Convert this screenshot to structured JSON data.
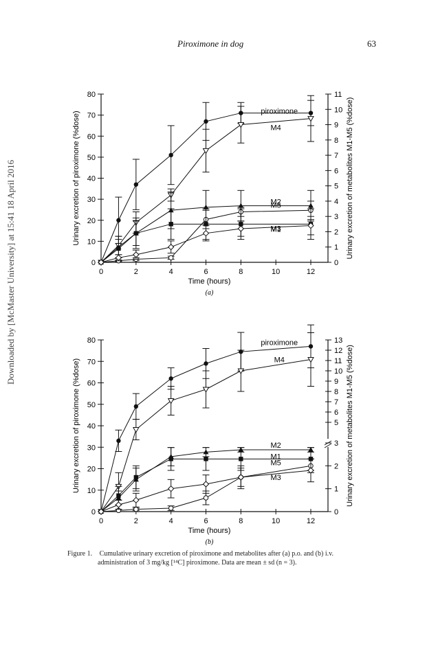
{
  "header": {
    "running_head": "Piroximone in dog",
    "page_number": "63"
  },
  "watermark": "Downloaded by [McMaster University] at 15:41 18 April 2016",
  "caption": {
    "label": "Figure 1.",
    "line1": "Cumulative urinary excretion of piroximone and metabolites after (a) p.o. and (b) i.v.",
    "line2": "administration of 3 mg/kg [¹⁴C] piroximone. Data are mean ± sd (n = 3)."
  },
  "chart_data": [
    {
      "type": "line",
      "panel_label": "(a)",
      "xlabel": "Time (hours)",
      "ylabel": "Urinary excretion of piroximone (%dose)",
      "y2label": "Urinary excretion of metabolites M1-M5 (%dose)",
      "xlim": [
        0,
        12
      ],
      "ylim": [
        0,
        80
      ],
      "y2lim": [
        0,
        11
      ],
      "xticks": [
        0,
        2,
        4,
        6,
        8,
        10,
        12
      ],
      "yticks": [
        0,
        10,
        20,
        30,
        40,
        50,
        60,
        70,
        80
      ],
      "y2ticks": [
        0,
        1,
        2,
        3,
        4,
        5,
        6,
        7,
        8,
        9,
        10,
        11
      ],
      "x": [
        0,
        1,
        2,
        4,
        6,
        8,
        12
      ],
      "series": [
        {
          "name": "piroximone",
          "axis": "left",
          "marker": "filled-circle",
          "values": [
            0,
            20,
            37,
            51,
            67,
            71,
            71
          ],
          "errors": [
            0,
            11,
            12,
            14,
            9,
            5,
            6
          ]
        },
        {
          "name": "M4",
          "axis": "right",
          "marker": "open-triangle-down",
          "values": [
            0,
            1.1,
            2.6,
            4.4,
            7.3,
            9.0,
            9.4
          ],
          "errors": [
            0,
            0.6,
            0.7,
            0.4,
            1.4,
            1.2,
            1.5
          ]
        },
        {
          "name": "M2",
          "axis": "right",
          "marker": "filled-triangle",
          "values": [
            0,
            1.0,
            1.9,
            3.4,
            3.6,
            3.7,
            3.7
          ],
          "errors": [
            0,
            0.7,
            1.0,
            1.2,
            1.1,
            1.0,
            1.0
          ]
        },
        {
          "name": "M5",
          "axis": "right",
          "marker": "open-circle",
          "values": [
            0,
            0.1,
            0.2,
            0.3,
            2.8,
            3.3,
            3.4
          ],
          "errors": [
            0,
            0.05,
            0.1,
            0.1,
            0.6,
            0.3,
            0.6
          ]
        },
        {
          "name": "M1",
          "axis": "right",
          "marker": "filled-square",
          "values": [
            0,
            0.9,
            1.9,
            2.5,
            2.5,
            2.5,
            2.5
          ],
          "errors": [
            0,
            0.6,
            0.8,
            1.0,
            1.0,
            1.0,
            1.0
          ]
        },
        {
          "name": "M3",
          "axis": "right",
          "marker": "open-diamond",
          "values": [
            0,
            0.3,
            0.5,
            1.0,
            1.9,
            2.2,
            2.4
          ],
          "errors": [
            0,
            0.2,
            0.3,
            0.4,
            0.5,
            0.5,
            0.6
          ]
        }
      ]
    },
    {
      "type": "line",
      "panel_label": "(b)",
      "xlabel": "Time (hours)",
      "ylabel": "Urinary excretion of piroximone (%dose)",
      "y2label": "Urinary excretion of metabolites M1-M5 (%dose)",
      "xlim": [
        0,
        12
      ],
      "ylim": [
        0,
        80
      ],
      "y2_scale": "broken",
      "y2_segments": [
        {
          "range": [
            0,
            3
          ],
          "axis_fraction": [
            0,
            0.4
          ]
        },
        {
          "range": [
            3,
            13
          ],
          "axis_fraction": [
            0.4,
            1.0
          ]
        }
      ],
      "xticks": [
        0,
        2,
        4,
        6,
        8,
        10,
        12
      ],
      "yticks": [
        0,
        10,
        20,
        30,
        40,
        50,
        60,
        70,
        80
      ],
      "y2ticks": [
        0,
        1,
        2,
        3,
        5,
        6,
        7,
        8,
        9,
        10,
        11,
        12,
        13
      ],
      "x": [
        0,
        1,
        2,
        4,
        6,
        8,
        12
      ],
      "series": [
        {
          "name": "piroximone",
          "axis": "left",
          "marker": "filled-circle",
          "values": [
            0,
            33,
            49,
            62,
            69,
            74.5,
            77
          ],
          "errors": [
            0,
            5,
            6,
            5,
            7,
            9,
            10
          ]
        },
        {
          "name": "M4",
          "axis": "right",
          "marker": "open-triangle-down",
          "values": [
            0,
            1.1,
            4.3,
            7.1,
            8.2,
            10.0,
            11.1
          ],
          "errors": [
            0,
            0.6,
            1.0,
            1.4,
            1.8,
            2.0,
            2.6
          ]
        },
        {
          "name": "M2",
          "axis": "right",
          "marker": "filled-triangle",
          "values": [
            0,
            0.6,
            1.4,
            2.4,
            2.6,
            2.7,
            2.7
          ],
          "errors": [
            0,
            0.3,
            0.5,
            0.4,
            0.2,
            0.1,
            0.1
          ]
        },
        {
          "name": "M1",
          "axis": "right",
          "marker": "filled-square",
          "values": [
            0,
            0.7,
            1.5,
            2.3,
            2.3,
            2.3,
            2.3
          ],
          "errors": [
            0,
            0.4,
            0.5,
            0.5,
            0.5,
            0.5,
            0.5
          ]
        },
        {
          "name": "M5",
          "axis": "right",
          "marker": "open-circle",
          "values": [
            0,
            0.05,
            0.1,
            0.15,
            0.6,
            1.5,
            2.0
          ],
          "errors": [
            0,
            0.05,
            0.05,
            0.1,
            0.3,
            0.4,
            0.3
          ]
        },
        {
          "name": "M3",
          "axis": "right",
          "marker": "open-diamond",
          "values": [
            0,
            0.3,
            0.5,
            1.0,
            1.2,
            1.5,
            1.8
          ],
          "errors": [
            0,
            0.2,
            0.3,
            0.4,
            0.4,
            0.5,
            0.5
          ]
        }
      ]
    }
  ]
}
